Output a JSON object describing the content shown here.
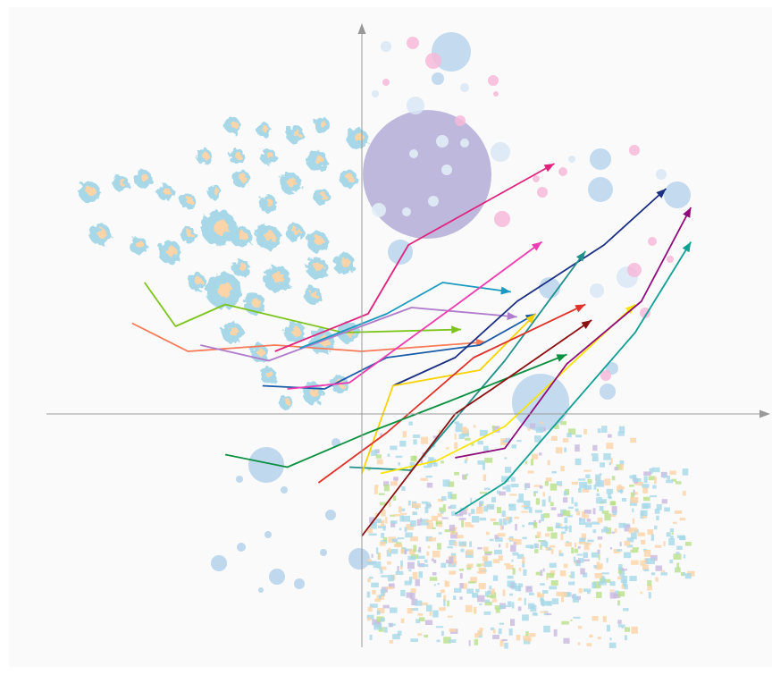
{
  "chart_data": {
    "type": "line",
    "title": "",
    "xlabel": "",
    "ylabel": "",
    "xlim": [
      -5.5,
      6.5
    ],
    "ylim": [
      -3.7,
      6.2
    ],
    "grid": false,
    "colors": {
      "background": "#fafafa",
      "axis": "#999999",
      "cluster_blue": "#a8d8e8",
      "cluster_orange": "#fcd4a8",
      "big_circle": "#b3add6"
    },
    "series": [
      {
        "color": "#7cc41c",
        "x": [
          -3.5,
          -3.0,
          -2.2,
          -0.3,
          1.6
        ],
        "y": [
          2.1,
          1.4,
          1.75,
          1.3,
          1.35
        ]
      },
      {
        "color": "#fa7a58",
        "x": [
          -3.7,
          -2.8,
          -1.4,
          0.0,
          2.0
        ],
        "y": [
          1.45,
          1.0,
          1.1,
          1.0,
          1.15
        ]
      },
      {
        "color": "#b07ccc",
        "x": [
          -2.6,
          -1.5,
          0.8,
          2.5
        ],
        "y": [
          1.1,
          0.85,
          1.7,
          1.55
        ]
      },
      {
        "color": "#e0247e",
        "x": [
          -1.4,
          0.1,
          0.75,
          3.1
        ],
        "y": [
          1.0,
          1.6,
          2.7,
          4.0
        ]
      },
      {
        "color": "#1a9ac0",
        "x": [
          -1.0,
          0.4,
          1.3,
          2.4
        ],
        "y": [
          1.05,
          1.6,
          2.1,
          1.95
        ]
      },
      {
        "color": "#1a5ba8",
        "x": [
          -1.6,
          -0.6,
          0.4,
          1.9,
          2.8
        ],
        "y": [
          0.45,
          0.4,
          0.9,
          1.1,
          1.6
        ]
      },
      {
        "color": "#1a2e82",
        "x": [
          0.5,
          1.5,
          2.5,
          3.9,
          4.9
        ],
        "y": [
          0.45,
          0.9,
          1.8,
          2.7,
          3.6
        ]
      },
      {
        "color": "#ef3cb0",
        "x": [
          -1.2,
          -0.2,
          1.6,
          2.9
        ],
        "y": [
          0.4,
          0.5,
          1.8,
          2.75
        ]
      },
      {
        "color": "#22908c",
        "x": [
          -0.2,
          0.8,
          2.3,
          3.6
        ],
        "y": [
          -0.85,
          -0.9,
          0.85,
          2.6
        ]
      },
      {
        "color": "#fad200",
        "x": [
          0.0,
          0.5,
          1.9,
          2.8
        ],
        "y": [
          -0.95,
          0.45,
          0.7,
          1.6
        ]
      },
      {
        "color": "#e03228",
        "x": [
          -0.7,
          0.4,
          1.8,
          3.6
        ],
        "y": [
          -1.1,
          -0.3,
          0.9,
          1.75
        ]
      },
      {
        "color": "#0a9040",
        "x": [
          -2.2,
          -1.2,
          0.1,
          1.4,
          3.3
        ],
        "y": [
          -0.65,
          -0.85,
          -0.3,
          0.2,
          0.95
        ]
      },
      {
        "color": "#fae500",
        "x": [
          0.3,
          1.2,
          2.3,
          4.4
        ],
        "y": [
          -0.95,
          -0.75,
          -0.2,
          1.75
        ]
      },
      {
        "color": "#8c0f10",
        "x": [
          0.0,
          1.5,
          2.1,
          3.7
        ],
        "y": [
          -1.95,
          0.0,
          0.4,
          1.5
        ]
      },
      {
        "color": "#900a7c",
        "x": [
          1.5,
          2.3,
          3.3,
          4.5,
          5.3
        ],
        "y": [
          -0.7,
          -0.55,
          0.8,
          1.8,
          3.3
        ]
      },
      {
        "color": "#10a094",
        "x": [
          1.5,
          2.3,
          4.4,
          5.3
        ],
        "y": [
          -1.6,
          -1.1,
          1.3,
          2.75
        ]
      }
    ]
  }
}
